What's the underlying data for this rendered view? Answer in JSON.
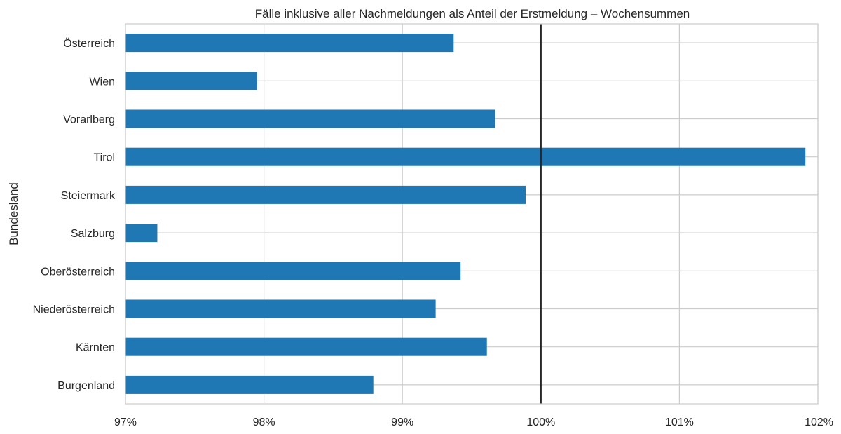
{
  "chart_data": {
    "type": "bar",
    "orientation": "horizontal",
    "title": "Fälle inklusive aller Nachmeldungen als Anteil der Erstmeldung – Wochensummen",
    "xlabel": "",
    "ylabel": "Bundesland",
    "categories": [
      "Österreich",
      "Wien",
      "Vorarlberg",
      "Tirol",
      "Steiermark",
      "Salzburg",
      "Oberösterreich",
      "Niederösterreich",
      "Kärnten",
      "Burgenland"
    ],
    "values": [
      99.37,
      97.95,
      99.67,
      101.91,
      99.89,
      97.23,
      99.42,
      99.24,
      99.61,
      98.79
    ],
    "xlim": [
      97,
      102
    ],
    "xticks": [
      97,
      98,
      99,
      100,
      101,
      102
    ],
    "xtick_labels": [
      "97%",
      "98%",
      "99%",
      "100%",
      "101%",
      "102%"
    ],
    "reference_line": 100,
    "grid": true,
    "colors": {
      "bar": "#1f77b4",
      "grid": "#cccccc",
      "reference": "#262626",
      "frame": "#cccccc"
    }
  }
}
